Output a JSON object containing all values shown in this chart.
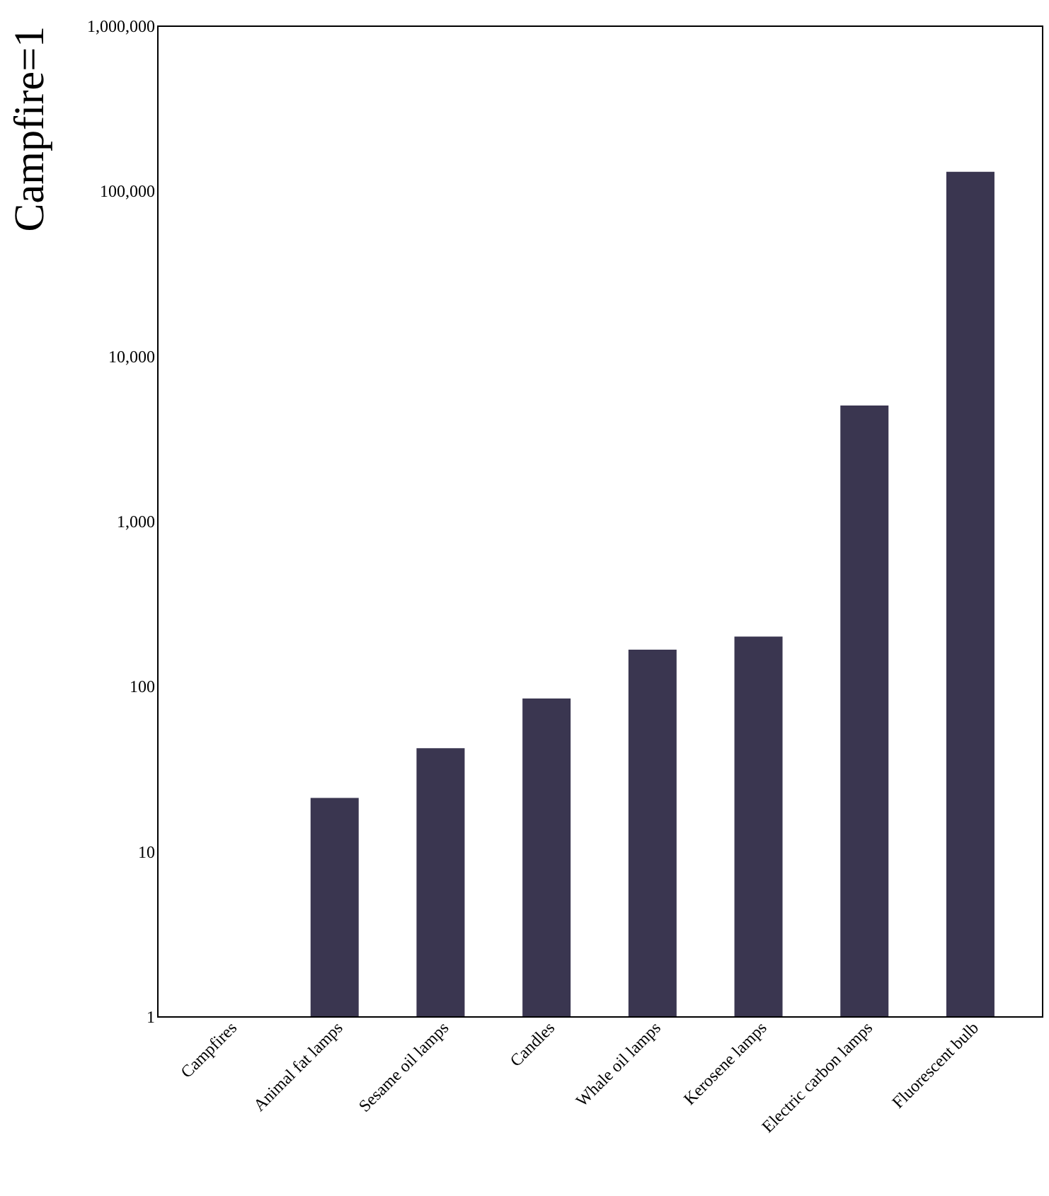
{
  "chart_data": {
    "type": "bar",
    "ylabel": "Campfire=1",
    "categories": [
      "Campfires",
      "Animal fat lamps",
      "Sesame oil lamps",
      "Candles",
      "Whale oil lamps",
      "Kerosene lamps",
      "Electric carbon lamps",
      "Fluorescent bulb"
    ],
    "values": [
      1,
      21,
      42,
      84,
      166,
      199,
      5000,
      130000
    ],
    "color": "#3a3650",
    "log": true,
    "ylim": [
      1,
      1000000
    ],
    "yticks": [
      {
        "value": 1,
        "label": "1"
      },
      {
        "value": 10,
        "label": "10"
      },
      {
        "value": 100,
        "label": "100"
      },
      {
        "value": 1000,
        "label": "1,000"
      },
      {
        "value": 10000,
        "label": "10,000"
      },
      {
        "value": 100000,
        "label": "100,000"
      },
      {
        "value": 1000000,
        "label": "1,000,000"
      }
    ],
    "grid": false
  }
}
